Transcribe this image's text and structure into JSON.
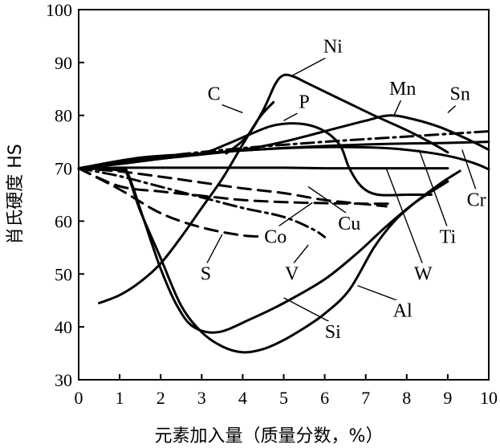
{
  "chart_data": {
    "type": "line",
    "xlabel": "元素加入量（质量分数，%）",
    "ylabel": "肖氏硬度 HS",
    "xlim": [
      0,
      10
    ],
    "ylim": [
      30,
      100
    ],
    "xticks": [
      "0",
      "1",
      "2",
      "3",
      "4",
      "5",
      "6",
      "7",
      "8",
      "9",
      "10"
    ],
    "yticks": [
      "30",
      "40",
      "50",
      "60",
      "70",
      "80",
      "90",
      "100"
    ],
    "series": [
      {
        "name": "Ni",
        "style": "solid",
        "label_pos": [
          6.2,
          92.5
        ],
        "label_anchor": [
          5.2,
          87.5
        ],
        "points": [
          [
            3.6,
            72.8
          ],
          [
            4.1,
            76
          ],
          [
            4.5,
            81
          ],
          [
            4.8,
            86
          ],
          [
            5.0,
            87.6
          ],
          [
            5.25,
            87.3
          ],
          [
            5.6,
            86
          ],
          [
            6.4,
            83
          ],
          [
            7.2,
            80
          ],
          [
            8.0,
            77.2
          ],
          [
            8.6,
            74.8
          ],
          [
            9.0,
            73
          ]
        ]
      },
      {
        "name": "C",
        "style": "solid",
        "label_pos": [
          3.3,
          83.5
        ],
        "label_anchor": [
          4.0,
          80.5
        ],
        "points": [
          [
            0.5,
            44.5
          ],
          [
            1.0,
            46
          ],
          [
            1.5,
            48.5
          ],
          [
            2.0,
            52
          ],
          [
            2.5,
            57
          ],
          [
            3.0,
            62.5
          ],
          [
            3.5,
            68
          ],
          [
            4.0,
            74.5
          ],
          [
            4.4,
            79.5
          ],
          [
            4.75,
            82.5
          ]
        ]
      },
      {
        "name": "P",
        "style": "solid",
        "label_pos": [
          5.5,
          82
        ],
        "label_anchor": [
          5.0,
          79
        ],
        "points": [
          [
            0,
            70
          ],
          [
            1.0,
            71
          ],
          [
            2.0,
            71.8
          ],
          [
            3.0,
            72.8
          ],
          [
            3.6,
            74.5
          ],
          [
            4.2,
            76.5
          ],
          [
            4.7,
            78
          ],
          [
            5.2,
            78.5
          ],
          [
            5.7,
            78
          ],
          [
            6.1,
            76.5
          ],
          [
            6.4,
            74
          ],
          [
            6.6,
            70
          ],
          [
            6.9,
            66.5
          ],
          [
            7.3,
            65
          ],
          [
            8.0,
            65
          ],
          [
            8.6,
            65
          ]
        ]
      },
      {
        "name": "Mn",
        "style": "solid",
        "label_pos": [
          7.9,
          84.5
        ],
        "label_anchor": [
          7.7,
          80.2
        ],
        "points": [
          [
            0,
            70
          ],
          [
            1,
            70.8
          ],
          [
            2,
            71.8
          ],
          [
            3,
            72.6
          ],
          [
            4,
            73.5
          ],
          [
            5,
            75
          ],
          [
            6,
            77
          ],
          [
            7,
            79
          ],
          [
            7.6,
            80
          ],
          [
            8.2,
            79.2
          ],
          [
            8.8,
            77.8
          ],
          [
            9.4,
            75.8
          ],
          [
            10,
            73.5
          ]
        ]
      },
      {
        "name": "Sn",
        "style": "dashdot",
        "label_pos": [
          9.3,
          83.5
        ],
        "label_anchor": [
          9.0,
          80.5
        ],
        "points": [
          [
            0,
            70
          ],
          [
            2,
            72.2
          ],
          [
            4,
            73.8
          ],
          [
            6,
            75
          ],
          [
            8,
            76
          ],
          [
            10,
            77
          ]
        ]
      },
      {
        "name": "Cr",
        "style": "solid",
        "label_pos": [
          9.7,
          63.5
        ],
        "label_anchor": [
          9.35,
          73.5
        ],
        "points": [
          [
            0,
            70
          ],
          [
            1.5,
            71.7
          ],
          [
            3,
            72.8
          ],
          [
            4.5,
            73.6
          ],
          [
            6,
            74.2
          ],
          [
            7.5,
            74.6
          ],
          [
            9,
            74.8
          ],
          [
            10,
            75
          ]
        ]
      },
      {
        "name": "Ti",
        "style": "solid",
        "label_pos": [
          9.0,
          56.5
        ],
        "label_anchor": [
          8.3,
          73.5
        ],
        "points": [
          [
            0,
            70
          ],
          [
            1.5,
            72
          ],
          [
            3,
            72.8
          ],
          [
            4.5,
            73.6
          ],
          [
            6,
            74
          ],
          [
            7.5,
            73.8
          ],
          [
            8.5,
            73
          ],
          [
            9.2,
            72
          ],
          [
            9.7,
            70.8
          ],
          [
            10,
            69.8
          ]
        ]
      },
      {
        "name": "W",
        "style": "solid",
        "label_pos": [
          8.4,
          49.5
        ],
        "label_anchor": [
          7.5,
          70
        ],
        "points": [
          [
            0,
            70
          ],
          [
            1,
            70.1
          ],
          [
            2,
            70.1
          ],
          [
            3,
            70.1
          ],
          [
            4,
            70.1
          ],
          [
            5,
            70.1
          ],
          [
            6,
            70
          ],
          [
            7,
            70
          ],
          [
            8,
            70
          ],
          [
            9,
            70
          ]
        ]
      },
      {
        "name": "Cu",
        "style": "dashed",
        "label_pos": [
          6.6,
          59
        ],
        "label_anchor": [
          5.6,
          66.5
        ],
        "points": [
          [
            0,
            70
          ],
          [
            1,
            69.4
          ],
          [
            2,
            68.4
          ],
          [
            3,
            67.3
          ],
          [
            4,
            66.2
          ],
          [
            5,
            65.3
          ],
          [
            6,
            64
          ],
          [
            7,
            63.2
          ],
          [
            7.5,
            62.8
          ]
        ]
      },
      {
        "name": "Co",
        "style": "dashed",
        "label_pos": [
          4.8,
          56.5
        ],
        "label_anchor": [
          5.7,
          63.5
        ],
        "points": [
          [
            0,
            70
          ],
          [
            1,
            66.6
          ],
          [
            2,
            65.6
          ],
          [
            3,
            64.8
          ],
          [
            4,
            64
          ],
          [
            5,
            63.6
          ],
          [
            6,
            63.4
          ],
          [
            7,
            63.3
          ],
          [
            7.7,
            63.3
          ]
        ]
      },
      {
        "name": "V",
        "style": "dashdot",
        "label_pos": [
          5.2,
          49.5
        ],
        "label_anchor": [
          5.6,
          55.5
        ],
        "points": [
          [
            0,
            70
          ],
          [
            1,
            68.5
          ],
          [
            2,
            66.5
          ],
          [
            3,
            64.5
          ],
          [
            4,
            62.5
          ],
          [
            5,
            60.8
          ],
          [
            5.7,
            58.5
          ],
          [
            6.0,
            57
          ]
        ]
      },
      {
        "name": "S",
        "style": "dashed",
        "label_pos": [
          3.1,
          49.5
        ],
        "label_anchor": [
          3.5,
          57.5
        ],
        "points": [
          [
            0,
            70
          ],
          [
            1,
            66
          ],
          [
            2,
            61.5
          ],
          [
            3,
            58.8
          ],
          [
            4,
            57.3
          ],
          [
            4.7,
            57.1
          ]
        ]
      },
      {
        "name": "Si",
        "style": "solid",
        "label_pos": [
          6.2,
          38.5
        ],
        "label_anchor": [
          5.0,
          45.5
        ],
        "points": [
          [
            0,
            70
          ],
          [
            1.0,
            69.8
          ],
          [
            1.2,
            69
          ],
          [
            1.6,
            60
          ],
          [
            2.0,
            51
          ],
          [
            2.4,
            44
          ],
          [
            2.8,
            40
          ],
          [
            3.4,
            39
          ],
          [
            4.2,
            41.5
          ],
          [
            5.0,
            44.5
          ],
          [
            6.0,
            49
          ],
          [
            6.8,
            54
          ],
          [
            7.5,
            59
          ],
          [
            8.2,
            63.5
          ],
          [
            9.0,
            67.5
          ]
        ]
      },
      {
        "name": "Al",
        "style": "solid",
        "label_pos": [
          7.9,
          42.5
        ],
        "label_anchor": [
          6.8,
          47.8
        ],
        "points": [
          [
            0,
            70
          ],
          [
            1.0,
            69.6
          ],
          [
            1.2,
            68.6
          ],
          [
            1.5,
            62
          ],
          [
            2.0,
            53
          ],
          [
            2.5,
            44
          ],
          [
            3.0,
            39
          ],
          [
            3.5,
            36.3
          ],
          [
            4.0,
            35.2
          ],
          [
            4.5,
            35.8
          ],
          [
            5.0,
            37.5
          ],
          [
            5.5,
            39.8
          ],
          [
            6.0,
            42.5
          ],
          [
            6.6,
            47
          ],
          [
            7.2,
            55
          ],
          [
            7.7,
            60
          ],
          [
            8.2,
            63.5
          ],
          [
            8.8,
            67
          ],
          [
            9.3,
            69.5
          ]
        ]
      }
    ]
  }
}
